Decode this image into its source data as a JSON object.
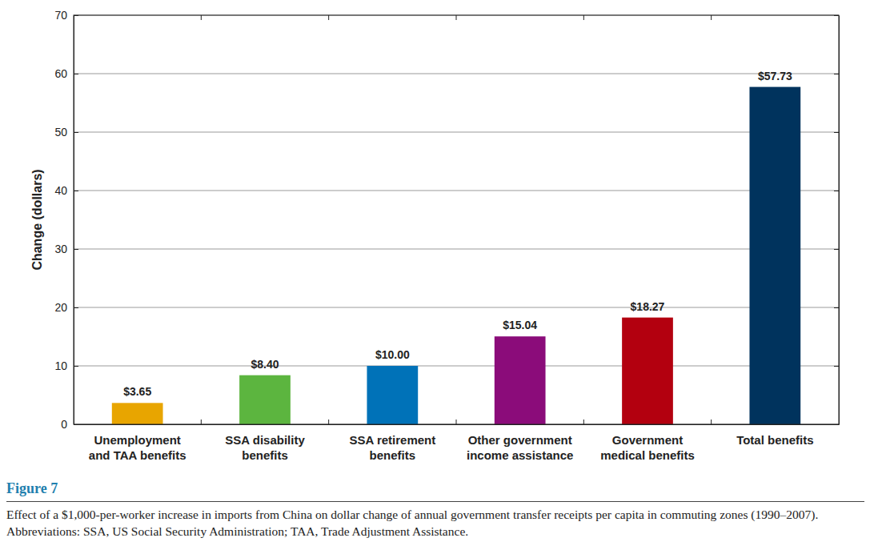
{
  "chart_data": {
    "type": "bar",
    "y_label": "Change (dollars)",
    "categories": [
      "Unemployment\nand TAA benefits",
      "SSA disability\nbenefits",
      "SSA retirement\nbenefits",
      "Other government\nincome assistance",
      "Government\nmedical benefits",
      "Total benefits"
    ],
    "values": [
      3.65,
      8.4,
      10.0,
      15.04,
      18.27,
      57.73
    ],
    "value_labels": [
      "$3.65",
      "$8.40",
      "$10.00",
      "$15.04",
      "$18.27",
      "$57.73"
    ],
    "colors": [
      "#e8a500",
      "#5cb53f",
      "#0072b8",
      "#8b0c7a",
      "#b3000f",
      "#00335d"
    ],
    "data_labels": true,
    "ylim": [
      0,
      70
    ],
    "yticks": [
      0,
      10,
      20,
      30,
      40,
      50,
      60,
      70
    ],
    "grid": true,
    "figure_label": "Figure 7",
    "caption": "Effect of a $1,000-per-worker increase in imports from China on dollar change of annual government transfer receipts per capita in commuting zones (1990–2007). Abbreviations: SSA, US Social Security Administration; TAA, Trade Adjustment Assistance."
  }
}
